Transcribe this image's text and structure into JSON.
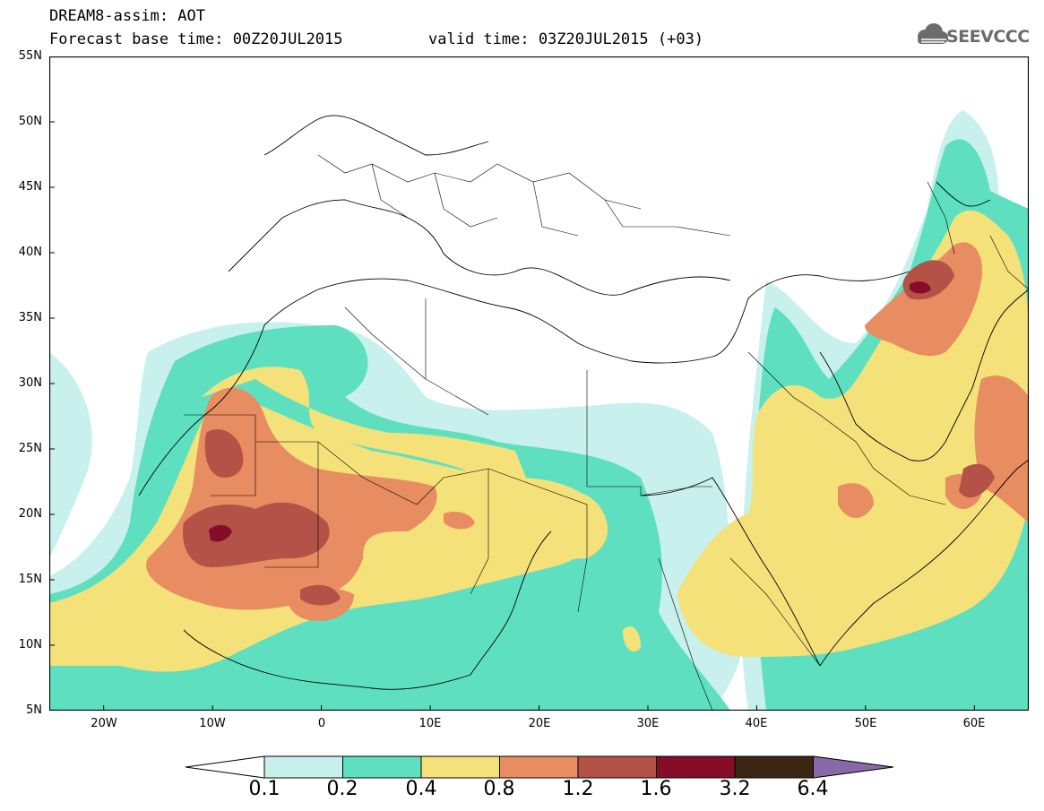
{
  "header": {
    "model_line": "DREAM8-assim: AOT",
    "base_time_line": "Forecast base time: 00Z20JUL2015",
    "valid_time_line": "valid time: 03Z20JUL2015 (+03)",
    "logo_text": "SEEVCCC"
  },
  "map": {
    "projection": "lat-lon",
    "lon_range": [
      -25,
      65
    ],
    "lat_range": [
      5,
      55
    ],
    "lat_ticks": [
      "55N",
      "50N",
      "45N",
      "40N",
      "35N",
      "30N",
      "25N",
      "20N",
      "15N",
      "10N",
      "5N"
    ],
    "lon_ticks": [
      "20W",
      "10W",
      "0",
      "10E",
      "20E",
      "30E",
      "40E",
      "50E",
      "60E"
    ],
    "field": "aerosol optical thickness"
  },
  "colorbar": {
    "labels": [
      "0.1",
      "0.2",
      "0.4",
      "0.8",
      "1.2",
      "1.6",
      "3.2",
      "6.4"
    ],
    "colors": [
      "#c8f0ec",
      "#5ee0c0",
      "#f5e17a",
      "#e88c62",
      "#b55248",
      "#860d28",
      "#3b2614",
      "#8868a8"
    ],
    "low_extension_color": "#ffffff",
    "high_extension_color": "#8868a8"
  }
}
